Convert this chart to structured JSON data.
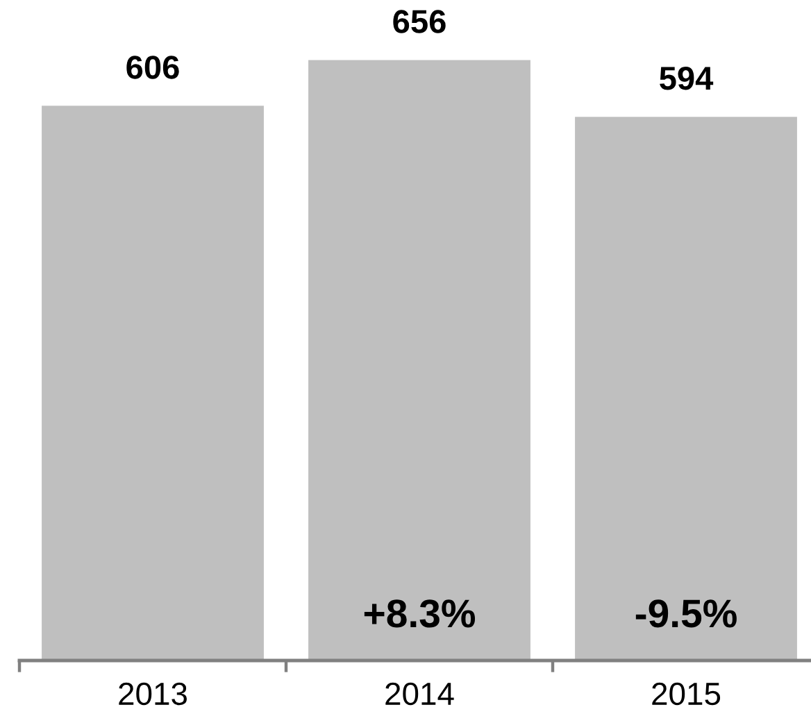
{
  "chart_data": {
    "type": "bar",
    "categories": [
      "2013",
      "2014",
      "2015"
    ],
    "values": [
      606,
      656,
      594
    ],
    "color": "#bfbfbf",
    "data_labels": true,
    "annotations": [
      "+8.3%",
      "-9.5%"
    ],
    "grid": false,
    "legend": false
  }
}
